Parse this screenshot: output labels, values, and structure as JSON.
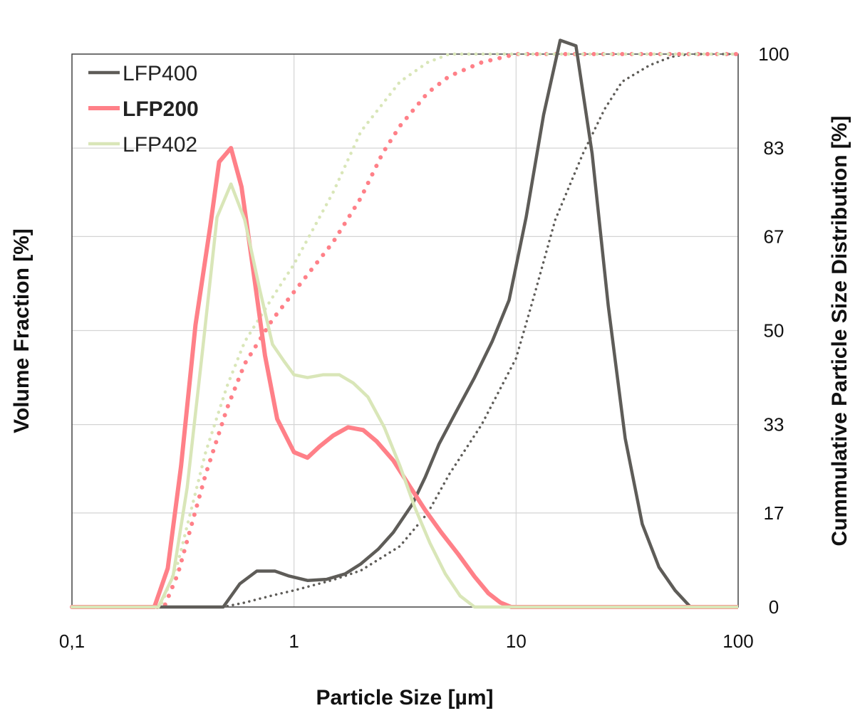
{
  "chart_data": {
    "type": "line",
    "xlabel": "Particle Size [µm]",
    "ylabel": "Volume Fraction [%]",
    "y2label": "Cummulative Particle Size Distribution [%]",
    "x_scale": "log",
    "xlim": [
      0.1,
      100
    ],
    "x_ticks": [
      0.1,
      1,
      10,
      100
    ],
    "x_tick_labels": [
      "0,1",
      "1",
      "10",
      "100"
    ],
    "ylim": [
      0,
      100
    ],
    "y2lim": [
      0,
      100
    ],
    "y2_ticks": [
      0,
      17,
      33,
      50,
      67,
      83,
      100
    ],
    "y2_tick_labels": [
      "0",
      "17",
      "33",
      "50",
      "67",
      "83",
      "100"
    ],
    "grid": true,
    "legend": {
      "position": "top-left",
      "entries": [
        {
          "label": "LFP400",
          "color": "#5e5c58",
          "bold": false
        },
        {
          "label": "LFP200",
          "color": "#ff8088",
          "bold": true
        },
        {
          "label": "LFP402",
          "color": "#d9e6b8",
          "bold": false
        }
      ]
    },
    "series": [
      {
        "name": "LFP400",
        "kind": "frequency",
        "axis": "left",
        "color": "#5e5c58",
        "width": 4.5,
        "style": "solid",
        "points": [
          [
            0.1,
            0
          ],
          [
            0.48,
            0
          ],
          [
            0.57,
            4.2
          ],
          [
            0.68,
            6.5
          ],
          [
            0.82,
            6.5
          ],
          [
            0.95,
            5.6
          ],
          [
            1.15,
            4.8
          ],
          [
            1.4,
            5.0
          ],
          [
            1.7,
            6.0
          ],
          [
            2.0,
            7.8
          ],
          [
            2.4,
            10.5
          ],
          [
            2.8,
            13.5
          ],
          [
            3.4,
            18.5
          ],
          [
            3.9,
            23.5
          ],
          [
            4.5,
            29.5
          ],
          [
            5.4,
            35.5
          ],
          [
            6.5,
            41.5
          ],
          [
            7.8,
            48.0
          ],
          [
            9.3,
            55.5
          ],
          [
            11.1,
            70.5
          ],
          [
            13.3,
            89.0
          ],
          [
            15.8,
            102.5
          ],
          [
            18.6,
            101.5
          ],
          [
            22.0,
            82.0
          ],
          [
            26.0,
            54.5
          ],
          [
            31.0,
            30.5
          ],
          [
            37.0,
            15.0
          ],
          [
            44.0,
            7.2
          ],
          [
            52.0,
            3.0
          ],
          [
            61.0,
            0
          ],
          [
            100,
            0
          ]
        ]
      },
      {
        "name": "LFP200",
        "kind": "frequency",
        "axis": "left",
        "color": "#ff8088",
        "width": 6,
        "style": "solid",
        "points": [
          [
            0.1,
            0
          ],
          [
            0.235,
            0
          ],
          [
            0.27,
            7.0
          ],
          [
            0.31,
            25.5
          ],
          [
            0.36,
            51.0
          ],
          [
            0.42,
            69.0
          ],
          [
            0.46,
            80.5
          ],
          [
            0.52,
            83.0
          ],
          [
            0.58,
            76.0
          ],
          [
            0.66,
            60.0
          ],
          [
            0.74,
            45.5
          ],
          [
            0.84,
            34.0
          ],
          [
            1.0,
            28.0
          ],
          [
            1.15,
            27.0
          ],
          [
            1.3,
            29.0
          ],
          [
            1.5,
            31.0
          ],
          [
            1.75,
            32.5
          ],
          [
            2.05,
            32.0
          ],
          [
            2.35,
            30.0
          ],
          [
            2.8,
            26.5
          ],
          [
            3.3,
            22.0
          ],
          [
            3.9,
            17.5
          ],
          [
            4.6,
            13.5
          ],
          [
            5.5,
            9.5
          ],
          [
            6.5,
            5.5
          ],
          [
            7.5,
            2.5
          ],
          [
            8.5,
            0.8
          ],
          [
            9.5,
            0
          ],
          [
            100,
            0
          ]
        ]
      },
      {
        "name": "LFP402",
        "kind": "frequency",
        "axis": "left",
        "color": "#d9e6b8",
        "width": 4.5,
        "style": "solid",
        "points": [
          [
            0.1,
            0
          ],
          [
            0.245,
            0
          ],
          [
            0.285,
            5.5
          ],
          [
            0.33,
            21.5
          ],
          [
            0.39,
            47.5
          ],
          [
            0.45,
            70.5
          ],
          [
            0.52,
            76.5
          ],
          [
            0.6,
            70.0
          ],
          [
            0.7,
            57.5
          ],
          [
            0.8,
            47.5
          ],
          [
            0.9,
            44.5
          ],
          [
            1.0,
            42.0
          ],
          [
            1.15,
            41.5
          ],
          [
            1.35,
            42.0
          ],
          [
            1.6,
            42.0
          ],
          [
            1.85,
            40.5
          ],
          [
            2.15,
            38.0
          ],
          [
            2.55,
            32.5
          ],
          [
            3.0,
            25.5
          ],
          [
            3.5,
            18.0
          ],
          [
            4.1,
            11.5
          ],
          [
            4.8,
            6.0
          ],
          [
            5.6,
            2.0
          ],
          [
            6.5,
            0
          ],
          [
            100,
            0
          ]
        ]
      },
      {
        "name": "LFP400",
        "kind": "cumulative",
        "axis": "right",
        "color": "#5e5c58",
        "width": 3.5,
        "style": "dotted",
        "points": [
          [
            0.1,
            0
          ],
          [
            0.48,
            0
          ],
          [
            0.6,
            0.8
          ],
          [
            0.8,
            2.1
          ],
          [
            1.0,
            3.0
          ],
          [
            1.5,
            4.9
          ],
          [
            2.0,
            6.6
          ],
          [
            3.0,
            11.0
          ],
          [
            4.0,
            17.0
          ],
          [
            5.0,
            24.0
          ],
          [
            7.0,
            33.0
          ],
          [
            10.0,
            45.0
          ],
          [
            12.0,
            56.0
          ],
          [
            15.0,
            70.0
          ],
          [
            20.0,
            82.0
          ],
          [
            25.0,
            90.0
          ],
          [
            30.0,
            95.0
          ],
          [
            40.0,
            98.0
          ],
          [
            50.0,
            99.5
          ],
          [
            60.0,
            100.0
          ],
          [
            100,
            100
          ]
        ]
      },
      {
        "name": "LFP200",
        "kind": "cumulative",
        "axis": "right",
        "color": "#ff8088",
        "width": 6,
        "style": "dotted",
        "points": [
          [
            0.1,
            0
          ],
          [
            0.26,
            0
          ],
          [
            0.3,
            6.0
          ],
          [
            0.4,
            24.0
          ],
          [
            0.5,
            36.0
          ],
          [
            0.6,
            44.0
          ],
          [
            0.8,
            52.0
          ],
          [
            1.0,
            57.0
          ],
          [
            1.5,
            66.0
          ],
          [
            2.0,
            74.0
          ],
          [
            2.5,
            82.0
          ],
          [
            3.0,
            87.0
          ],
          [
            4.0,
            93.0
          ],
          [
            5.0,
            96.0
          ],
          [
            7.0,
            98.5
          ],
          [
            10.0,
            100.0
          ],
          [
            100,
            100
          ]
        ]
      },
      {
        "name": "LFP402",
        "kind": "cumulative",
        "axis": "right",
        "color": "#d9e6b8",
        "width": 4.5,
        "style": "dotted",
        "points": [
          [
            0.1,
            0
          ],
          [
            0.25,
            0
          ],
          [
            0.3,
            8.0
          ],
          [
            0.4,
            28.0
          ],
          [
            0.5,
            40.0
          ],
          [
            0.6,
            48.0
          ],
          [
            0.8,
            56.0
          ],
          [
            1.0,
            62.0
          ],
          [
            1.5,
            75.0
          ],
          [
            2.0,
            86.0
          ],
          [
            3.0,
            95.0
          ],
          [
            4.0,
            98.5
          ],
          [
            5.0,
            100.0
          ],
          [
            100,
            100
          ]
        ]
      }
    ]
  }
}
